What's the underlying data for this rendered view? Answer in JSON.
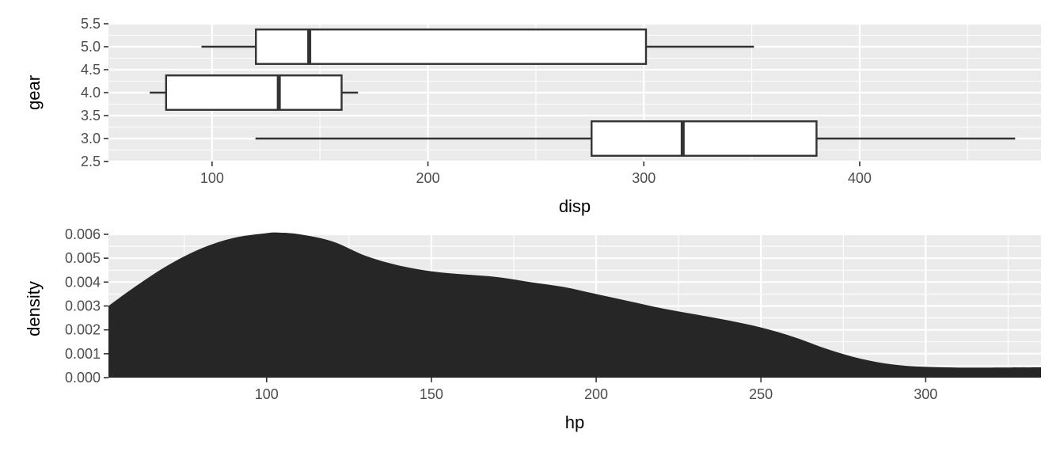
{
  "chart_data": [
    {
      "type": "boxplot",
      "orientation": "horizontal",
      "xlabel": "disp",
      "ylabel": "gear",
      "xlim": [
        52,
        484
      ],
      "ylim": [
        2.5,
        5.5
      ],
      "x_ticks": [
        100,
        200,
        300,
        400
      ],
      "y_ticks": [
        2.5,
        3.0,
        3.5,
        4.0,
        4.5,
        5.0,
        5.5
      ],
      "y_tick_labels": [
        "2.5",
        "3.0",
        "3.5",
        "4.0",
        "4.5",
        "5.0",
        "5.5"
      ],
      "grid": true,
      "boxes": [
        {
          "gear": 3.0,
          "whisker_low": 120.1,
          "q1": 275.8,
          "median": 318.0,
          "q3": 380.0,
          "whisker_high": 472.0
        },
        {
          "gear": 4.0,
          "whisker_low": 71.1,
          "q1": 78.7,
          "median": 130.9,
          "q3": 160.0,
          "whisker_high": 167.6
        },
        {
          "gear": 5.0,
          "whisker_low": 95.1,
          "q1": 120.3,
          "median": 145.0,
          "q3": 301.0,
          "whisker_high": 351.0
        }
      ],
      "colors": {
        "panel": "#ebebeb",
        "box_fill": "#ffffff",
        "box_line": "#333333"
      }
    },
    {
      "type": "area",
      "xlabel": "hp",
      "ylabel": "density",
      "xlim": [
        52,
        335
      ],
      "ylim": [
        0,
        0.006
      ],
      "x_ticks": [
        100,
        150,
        200,
        250,
        300
      ],
      "y_ticks": [
        0,
        0.001,
        0.002,
        0.003,
        0.004,
        0.005,
        0.006
      ],
      "y_tick_labels": [
        "0.000",
        "0.001",
        "0.002",
        "0.003",
        "0.004",
        "0.005",
        "0.006"
      ],
      "grid": true,
      "x": [
        52,
        60,
        70,
        80,
        90,
        100,
        104,
        110,
        120,
        130,
        140,
        150,
        160,
        170,
        180,
        190,
        200,
        210,
        220,
        230,
        240,
        250,
        260,
        270,
        280,
        290,
        300,
        310,
        320,
        335
      ],
      "y": [
        0.003,
        0.0038,
        0.0047,
        0.0054,
        0.00585,
        0.00605,
        0.00607,
        0.006,
        0.0057,
        0.0051,
        0.0047,
        0.00445,
        0.00432,
        0.00421,
        0.004,
        0.0038,
        0.0035,
        0.0032,
        0.0029,
        0.00265,
        0.0024,
        0.0021,
        0.0017,
        0.0012,
        0.0008,
        0.00055,
        0.00045,
        0.00042,
        0.00042,
        0.00043
      ],
      "colors": {
        "panel": "#ebebeb",
        "fill": "#262626"
      }
    }
  ]
}
